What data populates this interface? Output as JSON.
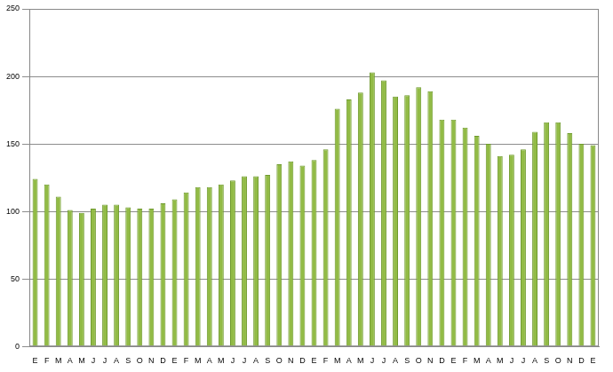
{
  "chart_data": {
    "type": "bar",
    "categories": [
      "E",
      "F",
      "M",
      "A",
      "M",
      "J",
      "J",
      "A",
      "S",
      "O",
      "N",
      "D",
      "E",
      "F",
      "M",
      "A",
      "M",
      "J",
      "J",
      "A",
      "S",
      "O",
      "N",
      "D",
      "E",
      "F",
      "M",
      "A",
      "M",
      "J",
      "J",
      "A",
      "S",
      "O",
      "N",
      "D",
      "E",
      "F",
      "M",
      "A",
      "M",
      "J",
      "J",
      "A",
      "S",
      "O",
      "N",
      "D",
      "E"
    ],
    "values": [
      124,
      120,
      111,
      101,
      99,
      102,
      105,
      105,
      103,
      102,
      102,
      106,
      109,
      114,
      118,
      118,
      120,
      123,
      126,
      126,
      127,
      135,
      137,
      134,
      138,
      146,
      176,
      183,
      188,
      203,
      197,
      185,
      186,
      192,
      189,
      168,
      168,
      162,
      156,
      150,
      141,
      142,
      146,
      159,
      166,
      166,
      158,
      150,
      149
    ],
    "color": "#92bb46",
    "ylim": [
      0,
      250
    ],
    "yticks": [
      0,
      50,
      100,
      150,
      200,
      250
    ],
    "grid": true
  }
}
